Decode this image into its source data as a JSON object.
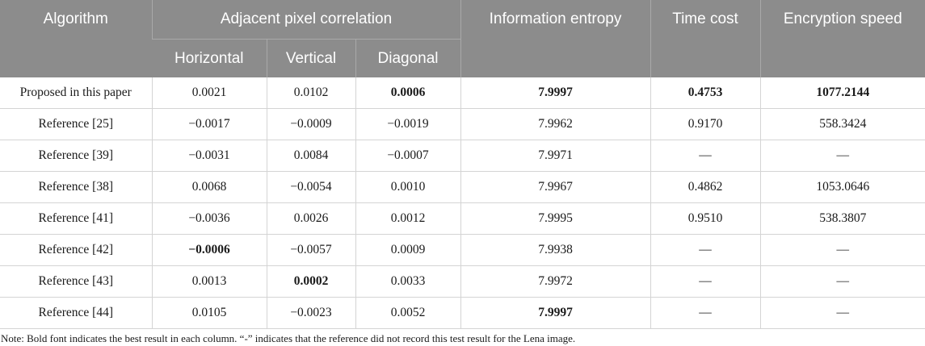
{
  "header": {
    "algorithm": "Algorithm",
    "adjacent": "Adjacent pixel correlation",
    "horizontal": "Horizontal",
    "vertical": "Vertical",
    "diagonal": "Diagonal",
    "entropy": "Information entropy",
    "time_cost": "Time cost",
    "speed": "Encryption speed"
  },
  "rows": [
    {
      "algorithm": "Proposed in this paper",
      "horizontal": "0.0021",
      "vertical": "0.0102",
      "diagonal": "0.0006",
      "entropy": "7.9997",
      "time_cost": "0.4753",
      "speed": "1077.2144"
    },
    {
      "algorithm": "Reference [25]",
      "horizontal": "−0.0017",
      "vertical": "−0.0009",
      "diagonal": "−0.0019",
      "entropy": "7.9962",
      "time_cost": "0.9170",
      "speed": "558.3424"
    },
    {
      "algorithm": "Reference [39]",
      "horizontal": "−0.0031",
      "vertical": "0.0084",
      "diagonal": "−0.0007",
      "entropy": "7.9971",
      "time_cost": "—",
      "speed": "—"
    },
    {
      "algorithm": "Reference [38]",
      "horizontal": "0.0068",
      "vertical": "−0.0054",
      "diagonal": "0.0010",
      "entropy": "7.9967",
      "time_cost": "0.4862",
      "speed": "1053.0646"
    },
    {
      "algorithm": "Reference [41]",
      "horizontal": "−0.0036",
      "vertical": "0.0026",
      "diagonal": "0.0012",
      "entropy": "7.9995",
      "time_cost": "0.9510",
      "speed": "538.3807"
    },
    {
      "algorithm": "Reference [42]",
      "horizontal": "−0.0006",
      "vertical": "−0.0057",
      "diagonal": "0.0009",
      "entropy": "7.9938",
      "time_cost": "—",
      "speed": "—"
    },
    {
      "algorithm": "Reference [43]",
      "horizontal": "0.0013",
      "vertical": "0.0002",
      "diagonal": "0.0033",
      "entropy": "7.9972",
      "time_cost": "—",
      "speed": "—"
    },
    {
      "algorithm": "Reference [44]",
      "horizontal": "0.0105",
      "vertical": "−0.0023",
      "diagonal": "0.0052",
      "entropy": "7.9997",
      "time_cost": "—",
      "speed": "—"
    }
  ],
  "note": "Note: Bold font indicates the best result in each column. “-” indicates that the reference did not record this test result for the Lena image."
}
